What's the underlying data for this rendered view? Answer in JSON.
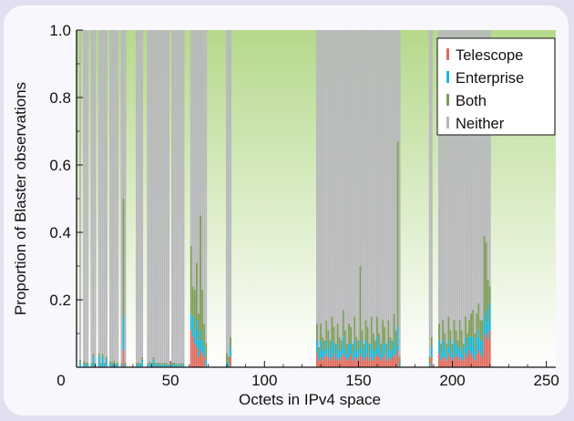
{
  "colors": {
    "telescope": "#e06a5c",
    "enterprise": "#1ab6d8",
    "both": "#7c9c58",
    "neither": "#b8b8bc",
    "green_top": "#b5d98c",
    "green_bottom": "#ffffff"
  },
  "chart_data": {
    "type": "bar",
    "stacked": true,
    "xlabel": "Octets in IPv4 space",
    "ylabel": "Proportion of Blaster observations",
    "xlim": [
      0,
      255
    ],
    "ylim": [
      0,
      1.0
    ],
    "x_ticks": [
      0,
      50,
      100,
      150,
      200,
      250
    ],
    "y_ticks": [
      0.2,
      0.4,
      0.6,
      0.8,
      1.0
    ],
    "y_tick_labels": [
      "0.2",
      "0.4",
      "0.6",
      "0.8",
      "1.0"
    ],
    "grid": false,
    "legend_position": "top-right",
    "legend": [
      "Telescope",
      "Enterprise",
      "Both",
      "Neither"
    ],
    "series_order": [
      "Telescope",
      "Enterprise",
      "Both",
      "Neither"
    ],
    "occupied_octets": [
      2,
      4,
      5,
      6,
      8,
      9,
      10,
      12,
      13,
      14,
      15,
      16,
      18,
      19,
      20,
      21,
      22,
      24,
      25,
      26,
      32,
      33,
      34,
      35,
      38,
      39,
      40,
      41,
      42,
      43,
      44,
      45,
      46,
      47,
      48,
      49,
      51,
      52,
      53,
      54,
      55,
      56,
      57,
      61,
      62,
      63,
      64,
      65,
      66,
      67,
      68,
      69,
      80,
      81,
      82,
      128,
      129,
      130,
      131,
      132,
      133,
      134,
      135,
      136,
      137,
      138,
      139,
      140,
      141,
      142,
      143,
      144,
      145,
      146,
      147,
      148,
      149,
      150,
      151,
      152,
      153,
      154,
      155,
      156,
      157,
      158,
      159,
      160,
      161,
      162,
      163,
      164,
      165,
      166,
      167,
      168,
      169,
      170,
      171,
      172,
      188,
      189,
      193,
      194,
      195,
      196,
      197,
      198,
      199,
      200,
      201,
      202,
      203,
      204,
      205,
      206,
      207,
      208,
      209,
      210,
      211,
      212,
      213,
      214,
      215,
      216,
      217,
      218,
      219,
      220,
      221
    ],
    "telescope": [
      0.002,
      0.002,
      0.002,
      0.002,
      0.002,
      0.003,
      0.002,
      0.003,
      0.002,
      0.002,
      0.002,
      0.003,
      0.002,
      0.002,
      0.002,
      0.002,
      0.002,
      0.002,
      0.05,
      0.002,
      0.002,
      0.002,
      0.002,
      0.002,
      0.002,
      0.002,
      0.002,
      0.002,
      0.002,
      0.002,
      0.002,
      0.002,
      0.002,
      0.002,
      0.002,
      0.002,
      0.002,
      0.002,
      0.002,
      0.002,
      0.002,
      0.002,
      0.002,
      0.11,
      0.09,
      0.07,
      0.06,
      0.03,
      0.05,
      0.04,
      0.03,
      0.002,
      0.002,
      0.002,
      0.03,
      0.04,
      0.02,
      0.03,
      0.02,
      0.03,
      0.04,
      0.03,
      0.02,
      0.03,
      0.04,
      0.02,
      0.03,
      0.02,
      0.03,
      0.04,
      0.03,
      0.02,
      0.03,
      0.04,
      0.02,
      0.03,
      0.02,
      0.03,
      0.04,
      0.03,
      0.02,
      0.03,
      0.04,
      0.02,
      0.03,
      0.02,
      0.03,
      0.04,
      0.03,
      0.02,
      0.03,
      0.04,
      0.02,
      0.03,
      0.02,
      0.03,
      0.04,
      0.03,
      0.05,
      0.002,
      0.002,
      0.03,
      0.04,
      0.02,
      0.03,
      0.03,
      0.02,
      0.04,
      0.03,
      0.02,
      0.03,
      0.04,
      0.03,
      0.02,
      0.03,
      0.02,
      0.04,
      0.03,
      0.05,
      0.04,
      0.03,
      0.02,
      0.04,
      0.05,
      0.04,
      0.03,
      0.09,
      0.1,
      0.08,
      0.11
    ],
    "enterprise": [
      0.01,
      0.008,
      0.006,
      0.006,
      0.005,
      0.03,
      0.005,
      0.03,
      0.006,
      0.03,
      0.006,
      0.02,
      0.008,
      0.006,
      0.01,
      0.005,
      0.006,
      0.005,
      0.1,
      0.006,
      0.005,
      0.006,
      0.005,
      0.02,
      0.005,
      0.008,
      0.006,
      0.02,
      0.006,
      0.005,
      0.006,
      0.005,
      0.005,
      0.006,
      0.005,
      0.004,
      0.005,
      0.006,
      0.005,
      0.004,
      0.005,
      0.005,
      0.005,
      0.05,
      0.06,
      0.04,
      0.08,
      0.05,
      0.06,
      0.04,
      0.03,
      0.02,
      0.01,
      0.01,
      0.03,
      0.04,
      0.02,
      0.05,
      0.03,
      0.02,
      0.04,
      0.03,
      0.02,
      0.05,
      0.03,
      0.02,
      0.04,
      0.03,
      0.02,
      0.05,
      0.03,
      0.02,
      0.04,
      0.03,
      0.02,
      0.05,
      0.03,
      0.02,
      0.04,
      0.03,
      0.02,
      0.05,
      0.03,
      0.02,
      0.04,
      0.03,
      0.02,
      0.05,
      0.03,
      0.02,
      0.04,
      0.03,
      0.02,
      0.05,
      0.03,
      0.02,
      0.04,
      0.03,
      0.07,
      0.01,
      0.01,
      0.03,
      0.04,
      0.02,
      0.05,
      0.03,
      0.02,
      0.04,
      0.03,
      0.02,
      0.05,
      0.03,
      0.02,
      0.04,
      0.03,
      0.02,
      0.05,
      0.03,
      0.04,
      0.05,
      0.06,
      0.03,
      0.05,
      0.06,
      0.04,
      0.05,
      0.06,
      0.07,
      0.05,
      0.08
    ],
    "both": [
      0.01,
      0.008,
      0.006,
      0.006,
      0.005,
      0.008,
      0.005,
      0.008,
      0.006,
      0.008,
      0.006,
      0.008,
      0.008,
      0.006,
      0.008,
      0.005,
      0.006,
      0.005,
      0.35,
      0.006,
      0.005,
      0.006,
      0.005,
      0.008,
      0.005,
      0.006,
      0.006,
      0.008,
      0.006,
      0.005,
      0.006,
      0.005,
      0.005,
      0.006,
      0.005,
      0.004,
      0.005,
      0.006,
      0.005,
      0.004,
      0.005,
      0.005,
      0.005,
      0.2,
      0.09,
      0.12,
      0.17,
      0.08,
      0.34,
      0.15,
      0.07,
      0.05,
      0.03,
      0.02,
      0.03,
      0.05,
      0.02,
      0.05,
      0.04,
      0.03,
      0.06,
      0.05,
      0.04,
      0.07,
      0.05,
      0.03,
      0.06,
      0.04,
      0.03,
      0.08,
      0.05,
      0.03,
      0.06,
      0.05,
      0.03,
      0.07,
      0.04,
      0.03,
      0.22,
      0.05,
      0.03,
      0.06,
      0.05,
      0.03,
      0.08,
      0.05,
      0.03,
      0.06,
      0.04,
      0.03,
      0.07,
      0.05,
      0.03,
      0.06,
      0.04,
      0.03,
      0.08,
      0.05,
      0.55,
      0.02,
      0.02,
      0.03,
      0.05,
      0.03,
      0.06,
      0.04,
      0.03,
      0.07,
      0.05,
      0.03,
      0.06,
      0.04,
      0.03,
      0.08,
      0.05,
      0.03,
      0.06,
      0.04,
      0.05,
      0.07,
      0.08,
      0.05,
      0.07,
      0.08,
      0.06,
      0.06,
      0.24,
      0.2,
      0.13,
      0.05
    ]
  }
}
